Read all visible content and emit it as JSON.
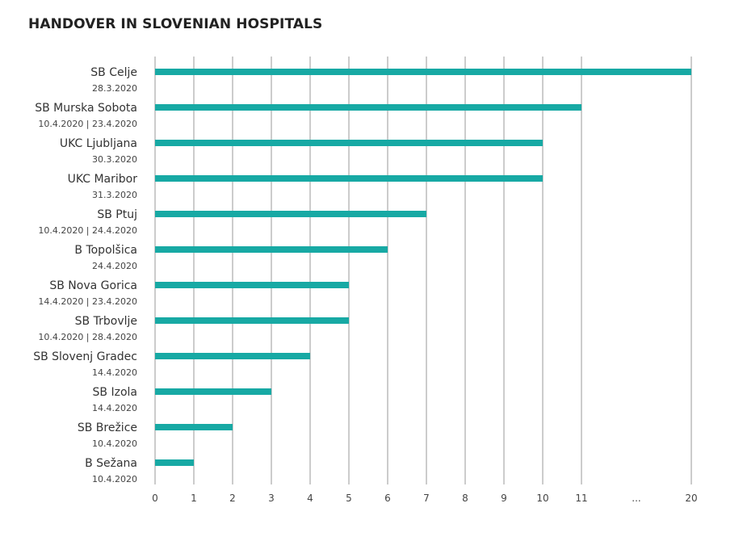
{
  "chart_data": {
    "type": "bar",
    "orientation": "horizontal",
    "title": "HANDOVER IN SLOVENIAN HOSPITALS",
    "xlabel": "",
    "ylabel": "",
    "grid": true,
    "bar_color": "#17a9a4",
    "grid_color": "#9a9a9a",
    "x_ticks": [
      "0",
      "1",
      "2",
      "3",
      "4",
      "5",
      "6",
      "7",
      "8",
      "9",
      "10",
      "11",
      "...",
      "20"
    ],
    "categories": [
      {
        "name": "SB Celje",
        "date": "28.3.2020",
        "value": 20
      },
      {
        "name": "SB Murska Sobota",
        "date": "10.4.2020 | 23.4.2020",
        "value": 11
      },
      {
        "name": "UKC Ljubljana",
        "date": "30.3.2020",
        "value": 10
      },
      {
        "name": "UKC Maribor",
        "date": "31.3.2020",
        "value": 10
      },
      {
        "name": "SB Ptuj",
        "date": "10.4.2020 | 24.4.2020",
        "value": 7
      },
      {
        "name": "B Topolšica",
        "date": "24.4.2020",
        "value": 6
      },
      {
        "name": "SB Nova Gorica",
        "date": "14.4.2020 | 23.4.2020",
        "value": 5
      },
      {
        "name": "SB Trbovlje",
        "date": "10.4.2020 | 28.4.2020",
        "value": 5
      },
      {
        "name": "SB Slovenj Gradec",
        "date": "14.4.2020",
        "value": 4
      },
      {
        "name": "SB Izola",
        "date": "14.4.2020",
        "value": 3
      },
      {
        "name": "SB Brežice",
        "date": "10.4.2020",
        "value": 2
      },
      {
        "name": "B Sežana",
        "date": "10.4.2020",
        "value": 1
      }
    ]
  }
}
